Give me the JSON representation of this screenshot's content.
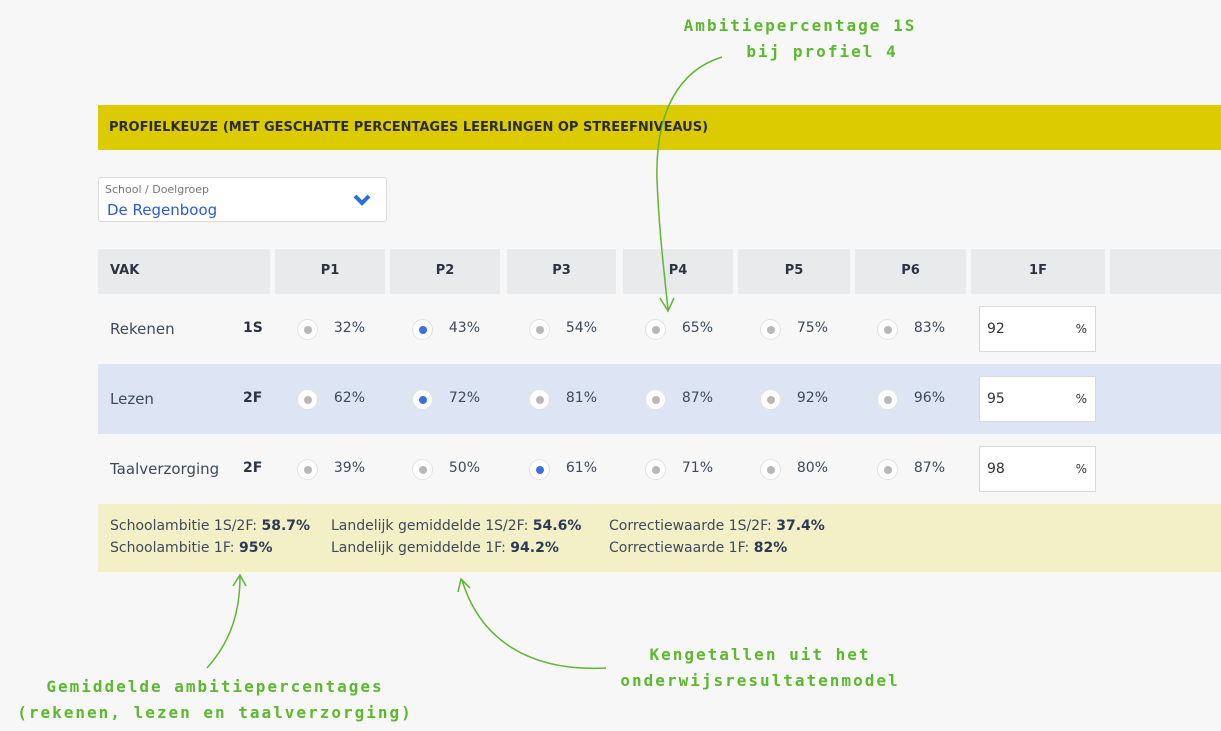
{
  "header": {
    "title": "PROFIELKEUZE (MET GESCHATTE PERCENTAGES LEERLINGEN OP STREEFNIVEAUS)"
  },
  "dropdown": {
    "label": "School / Doelgroep",
    "value": "De Regenboog"
  },
  "table": {
    "columns": [
      "VAK",
      "P1",
      "P2",
      "P3",
      "P4",
      "P5",
      "P6",
      "1F"
    ],
    "rows": [
      {
        "subject": "Rekenen",
        "level": "1S",
        "options": [
          "32%",
          "43%",
          "54%",
          "65%",
          "75%",
          "83%"
        ],
        "selected": 1,
        "input": "92",
        "unit": "%"
      },
      {
        "subject": "Lezen",
        "level": "2F",
        "options": [
          "62%",
          "72%",
          "81%",
          "87%",
          "92%",
          "96%"
        ],
        "selected": 1,
        "input": "95",
        "unit": "%"
      },
      {
        "subject": "Taalverzorging",
        "level": "2F",
        "options": [
          "39%",
          "50%",
          "61%",
          "71%",
          "80%",
          "87%"
        ],
        "selected": 2,
        "input": "98",
        "unit": "%"
      }
    ]
  },
  "summary": [
    [
      {
        "label": "Schoolambitie 1S/2F:",
        "value": "58.7%"
      },
      {
        "label": "Schoolambitie 1F:",
        "value": "95%"
      }
    ],
    [
      {
        "label": "Landelijk gemiddelde 1S/2F:",
        "value": "54.6%"
      },
      {
        "label": "Landelijk gemiddelde 1F:",
        "value": "94.2%"
      }
    ],
    [
      {
        "label": "Correctiewaarde 1S/2F:",
        "value": "37.4%"
      },
      {
        "label": "Correctiewaarde 1F:",
        "value": "82%"
      }
    ]
  ],
  "annotations": [
    {
      "lines": [
        "Ambitiepercentage 1S",
        "bij profiel 4"
      ]
    },
    {
      "lines": [
        "Gemiddelde ambitiepercentages",
        "(rekenen, lezen en taalverzorging)"
      ]
    },
    {
      "lines": [
        "Kengetallen uit het",
        "onderwijsresultatenmodel"
      ]
    }
  ]
}
